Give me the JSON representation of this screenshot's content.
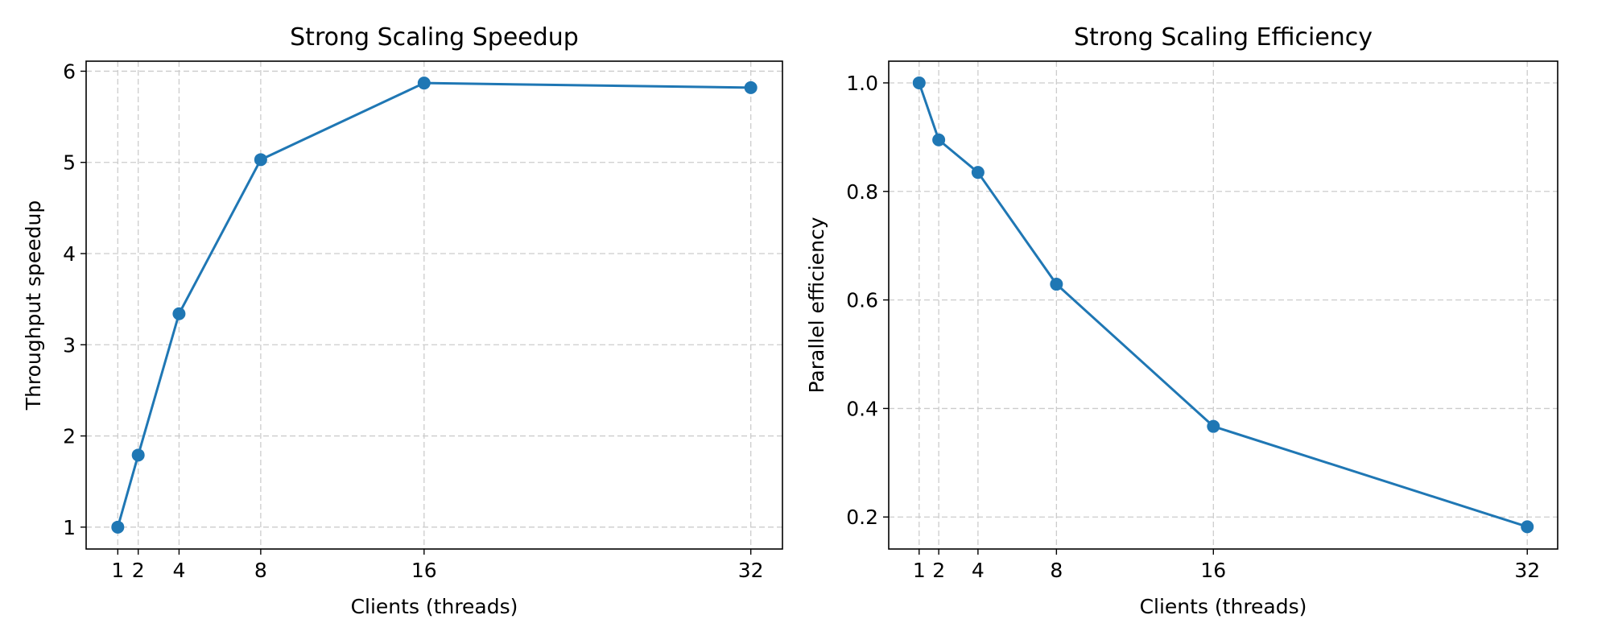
{
  "chart_data": [
    {
      "type": "line",
      "title": "Strong Scaling Speedup",
      "xlabel": "Clients (threads)",
      "ylabel": "Throughput speedup",
      "x": [
        1,
        2,
        4,
        8,
        16,
        32
      ],
      "xticks": [
        1,
        2,
        4,
        8,
        16,
        32
      ],
      "yticks": [
        1,
        2,
        3,
        4,
        5,
        6
      ],
      "xlim": [
        -0.55,
        33.55
      ],
      "ylim": [
        0.76,
        6.11
      ],
      "grid": true,
      "grid_style": "dashed",
      "series": [
        {
          "values": [
            1.0,
            1.79,
            3.34,
            5.03,
            5.87,
            5.82
          ],
          "color": "#1f77b4"
        }
      ]
    },
    {
      "type": "line",
      "title": "Strong Scaling Efficiency",
      "xlabel": "Clients (threads)",
      "ylabel": "Parallel efficiency",
      "x": [
        1,
        2,
        4,
        8,
        16,
        32
      ],
      "xticks": [
        1,
        2,
        4,
        8,
        16,
        32
      ],
      "yticks": [
        0.2,
        0.4,
        0.6,
        0.8,
        1.0
      ],
      "ytick_labels": [
        "0.2",
        "0.4",
        "0.6",
        "0.8",
        "1.0"
      ],
      "xlim": [
        -0.55,
        33.55
      ],
      "ylim": [
        0.141,
        1.04
      ],
      "grid": true,
      "grid_style": "dashed",
      "series": [
        {
          "values": [
            1.0,
            0.895,
            0.835,
            0.629,
            0.367,
            0.182
          ],
          "color": "#1f77b4"
        }
      ]
    }
  ]
}
